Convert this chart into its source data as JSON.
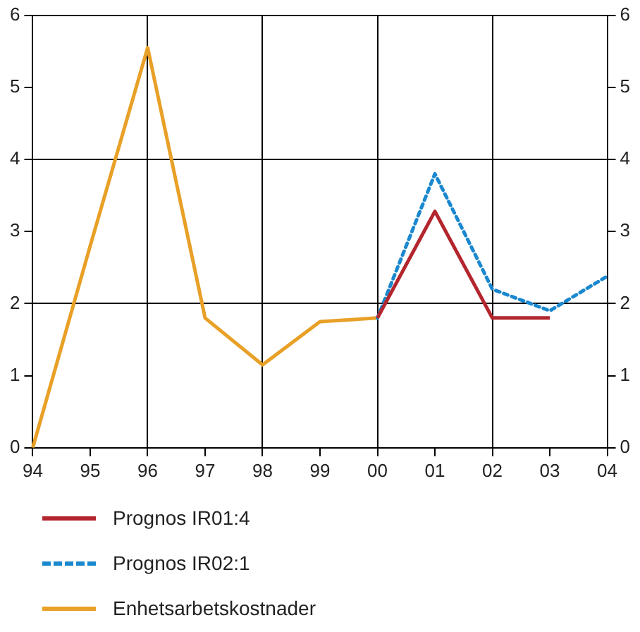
{
  "chart_data": {
    "type": "line",
    "categories": [
      "94",
      "95",
      "96",
      "97",
      "98",
      "99",
      "00",
      "01",
      "02",
      "03",
      "04"
    ],
    "series": [
      {
        "name": "Prognos IR01:4",
        "color": "#b3262e",
        "line_style": "solid",
        "values": [
          null,
          null,
          null,
          null,
          null,
          null,
          1.8,
          3.28,
          1.8,
          1.8,
          null
        ]
      },
      {
        "name": "Prognos IR02:1",
        "color": "#1a88cf",
        "line_style": "dotted",
        "values": [
          null,
          null,
          null,
          null,
          null,
          null,
          1.8,
          3.8,
          2.2,
          1.9,
          2.38
        ]
      },
      {
        "name": "Enhetsarbetskostnader",
        "color": "#e8a027",
        "line_style": "solid",
        "values": [
          0,
          2.8,
          5.55,
          1.8,
          1.15,
          1.75,
          1.8,
          null,
          null,
          null,
          null
        ]
      }
    ],
    "ylim": [
      0,
      6
    ],
    "yticks": [
      0,
      1,
      2,
      3,
      4,
      5,
      6
    ],
    "y2lim": [
      0,
      6
    ],
    "y2ticks": [
      0,
      1,
      2,
      3,
      4,
      5,
      6
    ],
    "grid": true,
    "legend": "bottom",
    "marker": "none"
  }
}
